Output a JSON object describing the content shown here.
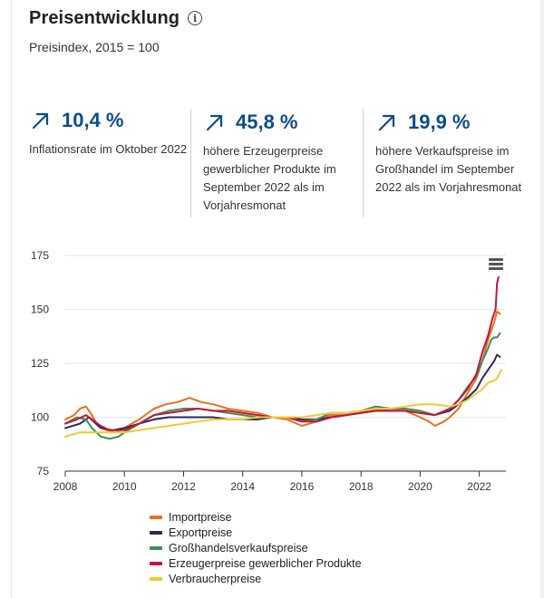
{
  "header": {
    "title": "Preisentwicklung",
    "info_icon": "info-icon",
    "subtitle": "Preisindex, 2015 = 100"
  },
  "kpis": [
    {
      "icon": "arrow-up-right-icon",
      "value": "10,4 %",
      "text": "Inflationsrate im Oktober 2022"
    },
    {
      "icon": "arrow-up-right-icon",
      "value": "45,8 %",
      "text": "höhere Erzeugerpreise gewerblicher Produkte im September 2022 als im Vorjahresmonat"
    },
    {
      "icon": "arrow-up-right-icon",
      "value": "19,9 %",
      "text": "höhere Verkaufspreise im Großhandel im September 2022 als im Vorjahresmonat"
    }
  ],
  "colors": {
    "kpi_value": "#0b4d8c",
    "Importpreise": "#e8711a",
    "Exportpreise": "#2a2a5c",
    "Großhandelsverkaufspreise": "#3a8f5a",
    "Erzeugerpreise gewerblicher Produkte": "#c8143c",
    "Verbraucherpreise": "#f5c832"
  },
  "chart_data": {
    "type": "line",
    "title": "",
    "xlabel": "",
    "ylabel": "",
    "xlim": [
      2008,
      2022.9
    ],
    "ylim": [
      75,
      175
    ],
    "yticks": [
      75,
      100,
      125,
      150,
      175
    ],
    "xticks": [
      2008,
      2010,
      2012,
      2014,
      2016,
      2018,
      2020,
      2022
    ],
    "grid": true,
    "legend": "bottom",
    "menu_icon": "hamburger-menu-icon",
    "series": [
      {
        "name": "Importpreise",
        "points": [
          [
            2008,
            99
          ],
          [
            2008.3,
            101
          ],
          [
            2008.5,
            104
          ],
          [
            2008.7,
            105
          ],
          [
            2008.9,
            101
          ],
          [
            2009.1,
            96
          ],
          [
            2009.4,
            94
          ],
          [
            2009.7,
            93
          ],
          [
            2010,
            95
          ],
          [
            2010.5,
            99
          ],
          [
            2011,
            104
          ],
          [
            2011.4,
            106
          ],
          [
            2011.8,
            107
          ],
          [
            2012.2,
            109
          ],
          [
            2012.6,
            107
          ],
          [
            2013,
            106
          ],
          [
            2013.5,
            104
          ],
          [
            2014,
            103
          ],
          [
            2014.5,
            102
          ],
          [
            2015,
            100
          ],
          [
            2015.5,
            99
          ],
          [
            2016,
            96
          ],
          [
            2016.5,
            98
          ],
          [
            2017,
            101
          ],
          [
            2017.5,
            101
          ],
          [
            2018,
            102
          ],
          [
            2018.5,
            104
          ],
          [
            2019,
            103
          ],
          [
            2019.5,
            103
          ],
          [
            2020,
            100
          ],
          [
            2020.3,
            98
          ],
          [
            2020.5,
            96
          ],
          [
            2020.8,
            98
          ],
          [
            2021,
            100
          ],
          [
            2021.3,
            104
          ],
          [
            2021.6,
            111
          ],
          [
            2021.9,
            118
          ],
          [
            2022.1,
            126
          ],
          [
            2022.3,
            136
          ],
          [
            2022.5,
            144
          ],
          [
            2022.6,
            149
          ],
          [
            2022.7,
            148
          ]
        ]
      },
      {
        "name": "Exportpreise",
        "points": [
          [
            2008,
            95
          ],
          [
            2008.5,
            97
          ],
          [
            2008.8,
            100
          ],
          [
            2009.2,
            95
          ],
          [
            2009.6,
            94
          ],
          [
            2010,
            95
          ],
          [
            2010.5,
            97
          ],
          [
            2011,
            99
          ],
          [
            2011.5,
            100
          ],
          [
            2012,
            100
          ],
          [
            2012.5,
            100
          ],
          [
            2013,
            100
          ],
          [
            2013.5,
            99
          ],
          [
            2014,
            99
          ],
          [
            2014.5,
            99
          ],
          [
            2015,
            100
          ],
          [
            2015.5,
            100
          ],
          [
            2016,
            99
          ],
          [
            2016.5,
            99
          ],
          [
            2017,
            100
          ],
          [
            2017.5,
            101
          ],
          [
            2018,
            102
          ],
          [
            2018.5,
            103
          ],
          [
            2019,
            103
          ],
          [
            2019.5,
            103
          ],
          [
            2020,
            102
          ],
          [
            2020.5,
            101
          ],
          [
            2021,
            103
          ],
          [
            2021.3,
            106
          ],
          [
            2021.6,
            109
          ],
          [
            2021.9,
            113
          ],
          [
            2022.1,
            118
          ],
          [
            2022.3,
            122
          ],
          [
            2022.5,
            126
          ],
          [
            2022.6,
            129
          ],
          [
            2022.7,
            128
          ]
        ]
      },
      {
        "name": "Großhandelsverkaufspreise",
        "points": [
          [
            2008,
            97
          ],
          [
            2008.4,
            100
          ],
          [
            2008.7,
            99
          ],
          [
            2008.9,
            95
          ],
          [
            2009.2,
            91
          ],
          [
            2009.5,
            90
          ],
          [
            2009.8,
            91
          ],
          [
            2010,
            93
          ],
          [
            2010.5,
            97
          ],
          [
            2011,
            101
          ],
          [
            2011.5,
            103
          ],
          [
            2012,
            104
          ],
          [
            2012.5,
            104
          ],
          [
            2013,
            103
          ],
          [
            2013.5,
            102
          ],
          [
            2014,
            101
          ],
          [
            2014.5,
            100
          ],
          [
            2015,
            100
          ],
          [
            2015.5,
            100
          ],
          [
            2016,
            98
          ],
          [
            2016.5,
            99
          ],
          [
            2017,
            102
          ],
          [
            2017.5,
            102
          ],
          [
            2018,
            103
          ],
          [
            2018.5,
            105
          ],
          [
            2019,
            104
          ],
          [
            2019.5,
            104
          ],
          [
            2020,
            103
          ],
          [
            2020.5,
            101
          ],
          [
            2021,
            104
          ],
          [
            2021.3,
            108
          ],
          [
            2021.6,
            114
          ],
          [
            2021.9,
            119
          ],
          [
            2022.1,
            126
          ],
          [
            2022.3,
            132
          ],
          [
            2022.4,
            136
          ],
          [
            2022.5,
            137
          ],
          [
            2022.6,
            137
          ],
          [
            2022.7,
            139
          ]
        ]
      },
      {
        "name": "Erzeugerpreise gewerblicher Produkte",
        "points": [
          [
            2008,
            97
          ],
          [
            2008.4,
            99
          ],
          [
            2008.7,
            101
          ],
          [
            2008.9,
            99
          ],
          [
            2009.2,
            96
          ],
          [
            2009.5,
            94
          ],
          [
            2009.8,
            94
          ],
          [
            2010,
            94
          ],
          [
            2010.5,
            97
          ],
          [
            2011,
            101
          ],
          [
            2011.5,
            102
          ],
          [
            2012,
            103
          ],
          [
            2012.5,
            104
          ],
          [
            2013,
            103
          ],
          [
            2013.5,
            103
          ],
          [
            2014,
            102
          ],
          [
            2014.5,
            101
          ],
          [
            2015,
            100
          ],
          [
            2015.5,
            100
          ],
          [
            2016,
            98
          ],
          [
            2016.5,
            98
          ],
          [
            2017,
            100
          ],
          [
            2017.5,
            101
          ],
          [
            2018,
            102
          ],
          [
            2018.5,
            103
          ],
          [
            2019,
            103
          ],
          [
            2019.5,
            103
          ],
          [
            2020,
            102
          ],
          [
            2020.5,
            101
          ],
          [
            2021,
            104
          ],
          [
            2021.3,
            108
          ],
          [
            2021.6,
            113
          ],
          [
            2021.9,
            120
          ],
          [
            2022.1,
            130
          ],
          [
            2022.3,
            138
          ],
          [
            2022.45,
            146
          ],
          [
            2022.55,
            150
          ],
          [
            2022.6,
            162
          ],
          [
            2022.65,
            165
          ]
        ]
      },
      {
        "name": "Verbraucherpreise",
        "points": [
          [
            2008,
            91
          ],
          [
            2008.5,
            93
          ],
          [
            2009,
            93
          ],
          [
            2009.5,
            93
          ],
          [
            2010,
            93
          ],
          [
            2010.5,
            94
          ],
          [
            2011,
            95
          ],
          [
            2011.5,
            96
          ],
          [
            2012,
            97
          ],
          [
            2012.5,
            98
          ],
          [
            2013,
            99
          ],
          [
            2013.5,
            99
          ],
          [
            2014,
            99
          ],
          [
            2014.5,
            100
          ],
          [
            2015,
            100
          ],
          [
            2015.5,
            100
          ],
          [
            2016,
            100
          ],
          [
            2016.5,
            101
          ],
          [
            2017,
            102
          ],
          [
            2017.5,
            102
          ],
          [
            2018,
            103
          ],
          [
            2018.5,
            104
          ],
          [
            2019,
            104
          ],
          [
            2019.5,
            105
          ],
          [
            2020,
            106
          ],
          [
            2020.5,
            106
          ],
          [
            2021,
            105
          ],
          [
            2021.3,
            106
          ],
          [
            2021.6,
            108
          ],
          [
            2021.9,
            111
          ],
          [
            2022.1,
            113
          ],
          [
            2022.3,
            116
          ],
          [
            2022.5,
            117
          ],
          [
            2022.6,
            118
          ],
          [
            2022.75,
            122
          ]
        ]
      }
    ]
  }
}
